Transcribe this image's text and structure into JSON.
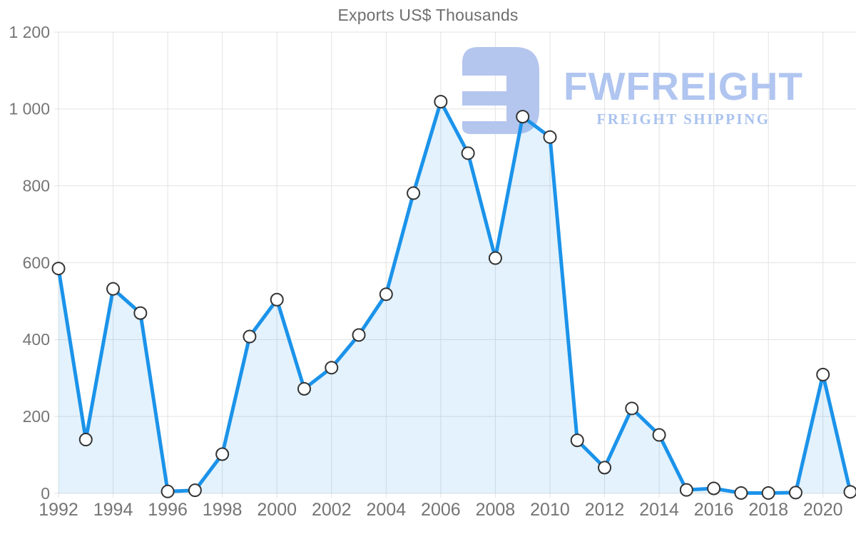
{
  "header": {
    "title": "Exports US$ Thousands"
  },
  "logo": {
    "brand": "FWFREIGHT",
    "tagline": "FREIGHT SHIPPING",
    "icon": "reversed-e-freight-mark",
    "color": "#b3c7f0"
  },
  "chart_data": {
    "type": "area",
    "title": "Exports US$ Thousands",
    "xlabel": "",
    "ylabel": "",
    "x": [
      1992,
      1993,
      1994,
      1995,
      1996,
      1997,
      1998,
      1999,
      2000,
      2001,
      2002,
      2003,
      2004,
      2005,
      2006,
      2007,
      2008,
      2009,
      2010,
      2011,
      2012,
      2013,
      2014,
      2015,
      2016,
      2017,
      2018,
      2019,
      2020,
      2021
    ],
    "series": [
      {
        "name": "Exports US$ Thousands",
        "values": [
          585,
          140,
          532,
          469,
          5,
          8,
          102,
          408,
          504,
          272,
          327,
          412,
          518,
          781,
          1019,
          885,
          612,
          980,
          927,
          138,
          67,
          221,
          152,
          9,
          13,
          1,
          1,
          2,
          309,
          4
        ]
      }
    ],
    "xlim": [
      1992,
      2021
    ],
    "ylim": [
      0,
      1200
    ],
    "xtick_labels": [
      "1992",
      "1994",
      "1996",
      "1998",
      "2000",
      "2002",
      "2004",
      "2006",
      "2008",
      "2010",
      "2012",
      "2014",
      "2016",
      "2018",
      "2020"
    ],
    "xtick_values": [
      1992,
      1994,
      1996,
      1998,
      2000,
      2002,
      2004,
      2006,
      2008,
      2010,
      2012,
      2014,
      2016,
      2018,
      2020
    ],
    "ytick_labels": [
      "0",
      "200",
      "400",
      "600",
      "800",
      "1 000",
      "1 200"
    ],
    "ytick_values": [
      0,
      200,
      400,
      600,
      800,
      1000,
      1200
    ],
    "grid": true,
    "legend": "none",
    "marker": "circle-open",
    "colors": {
      "line": "#1b93ea",
      "fill": "rgba(27,147,234,0.12)",
      "marker_fill": "#ffffff",
      "marker_stroke": "#333333",
      "grid": "#e3e3e3",
      "axis_text": "#757575",
      "title_text": "#6e6e6e"
    }
  }
}
